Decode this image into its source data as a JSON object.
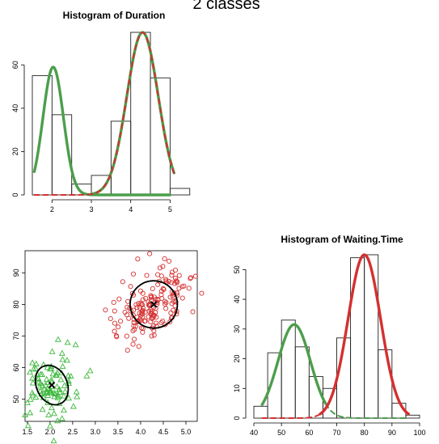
{
  "page": {
    "title": "2 classes"
  },
  "chart_data": [
    {
      "id": "duration",
      "type": "histogram",
      "title": "Histogram of Duration",
      "xlabel": "",
      "ylabel": "",
      "xlim": [
        1.5,
        5.3
      ],
      "ylim": [
        0,
        75
      ],
      "xticks": [
        2,
        3,
        4,
        5
      ],
      "yticks": [
        0,
        20,
        40,
        60
      ],
      "bins": [
        {
          "x0": 1.5,
          "x1": 2.0,
          "value": 55
        },
        {
          "x0": 2.0,
          "x1": 2.5,
          "value": 37
        },
        {
          "x0": 2.5,
          "x1": 3.0,
          "value": 5
        },
        {
          "x0": 3.0,
          "x1": 3.5,
          "value": 9
        },
        {
          "x0": 3.5,
          "x1": 4.0,
          "value": 34
        },
        {
          "x0": 4.0,
          "x1": 4.5,
          "value": 75
        },
        {
          "x0": 4.5,
          "x1": 5.0,
          "value": 54
        },
        {
          "x0": 5.0,
          "x1": 5.5,
          "value": 3
        }
      ],
      "curves": [
        {
          "color": "#4c9e4c",
          "style": "solid",
          "mean": 2.03,
          "sd": 0.26,
          "peak": 59,
          "from": 1.55,
          "to": 5.0
        },
        {
          "color": "#d43030",
          "style": "dashed",
          "mean": 4.3,
          "sd": 0.4,
          "peak": 75,
          "from": 1.55,
          "to": 5.1
        },
        {
          "color": "#4c9e4c",
          "style": "solid",
          "mean": 4.3,
          "sd": 0.4,
          "peak": 75,
          "from": 3.0,
          "to": 5.1,
          "under": true
        }
      ]
    },
    {
      "id": "scatter",
      "type": "scatter",
      "title": "",
      "xlabel": "",
      "ylabel": "",
      "xlim": [
        1.45,
        5.25
      ],
      "ylim": [
        43,
        97
      ],
      "xticks": [
        1.5,
        2.0,
        2.5,
        3.0,
        3.5,
        4.0,
        4.5,
        5.0
      ],
      "yticks": [
        50,
        60,
        70,
        80,
        90
      ],
      "clusters": [
        {
          "name": "",
          "color": "#3db83d",
          "marker": "triangle",
          "center": [
            2.04,
            54.5
          ],
          "sx": 0.28,
          "sy": 5.8,
          "rho": 0.2,
          "n": 97,
          "ellipse": {
            "a": 0.34,
            "b": 6.5
          }
        },
        {
          "name": "",
          "color": "#d43030",
          "marker": "circle",
          "center": [
            4.29,
            80.0
          ],
          "sx": 0.41,
          "sy": 6.0,
          "rho": 0.5,
          "n": 175,
          "ellipse": {
            "a": 0.52,
            "b": 7.5
          }
        }
      ]
    },
    {
      "id": "waiting",
      "type": "histogram",
      "title": "Histogram of Waiting.Time",
      "xlabel": "",
      "ylabel": "",
      "xlim": [
        40,
        100
      ],
      "ylim": [
        0,
        55
      ],
      "xticks": [
        40,
        50,
        60,
        70,
        80,
        90,
        100
      ],
      "yticks": [
        0,
        10,
        20,
        30,
        40,
        50
      ],
      "bins": [
        {
          "x0": 40,
          "x1": 45,
          "value": 4
        },
        {
          "x0": 45,
          "x1": 50,
          "value": 22
        },
        {
          "x0": 50,
          "x1": 55,
          "value": 33
        },
        {
          "x0": 55,
          "x1": 60,
          "value": 24
        },
        {
          "x0": 60,
          "x1": 65,
          "value": 14
        },
        {
          "x0": 65,
          "x1": 70,
          "value": 10
        },
        {
          "x0": 70,
          "x1": 75,
          "value": 27
        },
        {
          "x0": 75,
          "x1": 80,
          "value": 54
        },
        {
          "x0": 80,
          "x1": 85,
          "value": 55
        },
        {
          "x0": 85,
          "x1": 90,
          "value": 23
        },
        {
          "x0": 90,
          "x1": 95,
          "value": 5
        },
        {
          "x0": 95,
          "x1": 100,
          "value": 1
        }
      ],
      "curves": [
        {
          "color": "#4c9e4c",
          "style": "solid",
          "mean": 54.6,
          "sd": 5.9,
          "peak": 31.5,
          "from": 43,
          "to": 66
        },
        {
          "color": "#4c9e4c",
          "style": "dashed",
          "mean": 54.6,
          "sd": 5.9,
          "peak": 31.5,
          "from": 66,
          "to": 96
        },
        {
          "color": "#d43030",
          "style": "solid",
          "mean": 80,
          "sd": 5.9,
          "peak": 55,
          "from": 64,
          "to": 96
        },
        {
          "color": "#d43030",
          "style": "dashed",
          "mean": 80,
          "sd": 5.9,
          "peak": 55,
          "from": 43,
          "to": 64
        }
      ]
    }
  ]
}
